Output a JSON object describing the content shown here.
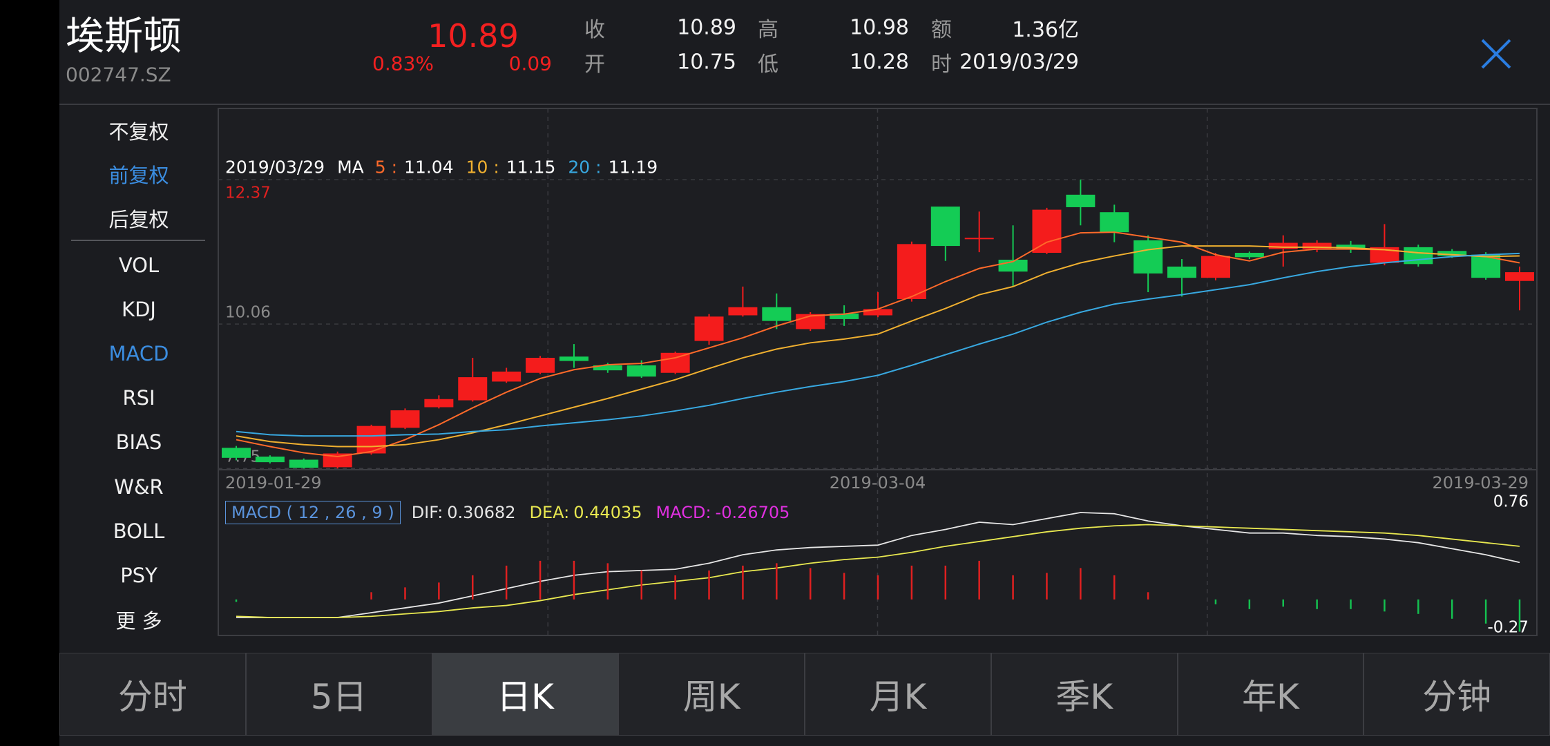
{
  "header": {
    "name": "埃斯顿",
    "code": "002747.SZ",
    "price": "10.89",
    "change_pct": "0.83%",
    "change": "0.09",
    "quote": [
      {
        "label": "收",
        "value": "10.89"
      },
      {
        "label": "开",
        "value": "10.75"
      },
      {
        "label": "高",
        "value": "10.98"
      },
      {
        "label": "低",
        "value": "10.28"
      },
      {
        "label": "额",
        "value": "1.36亿"
      },
      {
        "label": "时",
        "value": "2019/03/29"
      }
    ]
  },
  "sidebar": {
    "adjust": [
      "不复权",
      "前复权",
      "后复权"
    ],
    "adjust_active": 1,
    "indicators": [
      "VOL",
      "KDJ",
      "MACD",
      "RSI",
      "BIAS",
      "W&R",
      "BOLL",
      "PSY",
      "更 多"
    ],
    "indicator_active": 2
  },
  "tabs": {
    "items": [
      "分时",
      "5日",
      "日K",
      "周K",
      "月K",
      "季K",
      "年K",
      "分钟"
    ],
    "active": 2
  },
  "chart_data": [
    {
      "type": "candlestick",
      "legend_date": "2019/03/29",
      "ma_label": "MA",
      "x_labels": [
        "2019-01-29",
        "2019-03-04",
        "2019-03-29"
      ],
      "open": [
        8.08,
        7.94,
        7.89,
        7.77,
        7.99,
        8.4,
        8.73,
        8.84,
        9.14,
        9.28,
        9.54,
        9.4,
        9.4,
        9.28,
        9.79,
        10.2,
        10.33,
        9.98,
        10.23,
        10.2,
        10.46,
        11.94,
        11.43,
        11.09,
        11.2,
        12.13,
        11.85,
        11.4,
        10.98,
        10.8,
        11.2,
        11.26,
        11.26,
        11.33,
        11.04,
        11.29,
        11.23,
        11.17,
        10.75
      ],
      "high": [
        8.11,
        7.96,
        7.91,
        8.02,
        8.45,
        8.71,
        8.92,
        9.52,
        9.36,
        9.55,
        9.74,
        9.44,
        9.48,
        9.62,
        10.22,
        10.66,
        10.55,
        10.25,
        10.36,
        10.57,
        11.38,
        11.94,
        11.86,
        11.64,
        11.92,
        12.37,
        11.97,
        11.48,
        11.1,
        11.2,
        11.22,
        11.48,
        11.4,
        11.39,
        11.66,
        11.33,
        11.26,
        11.21,
        10.98
      ],
      "low": [
        7.88,
        7.83,
        7.75,
        7.75,
        7.97,
        8.38,
        8.71,
        8.82,
        9.12,
        9.26,
        9.36,
        9.28,
        9.2,
        9.26,
        9.73,
        10.18,
        9.98,
        9.95,
        10.03,
        10.17,
        10.42,
        11.07,
        11.21,
        10.66,
        11.18,
        11.64,
        11.37,
        10.57,
        10.5,
        10.76,
        11.1,
        10.98,
        11.21,
        11.2,
        11.0,
        10.98,
        11.12,
        10.77,
        10.28
      ],
      "close": [
        7.92,
        7.85,
        7.76,
        7.99,
        8.43,
        8.68,
        8.86,
        9.21,
        9.3,
        9.52,
        9.47,
        9.32,
        9.22,
        9.6,
        10.18,
        10.33,
        10.11,
        10.22,
        10.14,
        10.3,
        11.34,
        11.31,
        11.44,
        10.9,
        11.89,
        11.93,
        11.53,
        10.87,
        10.8,
        11.15,
        11.13,
        11.36,
        11.36,
        11.26,
        11.29,
        11.02,
        11.15,
        10.8,
        10.89
      ],
      "up_color": "#f41c1c",
      "down_color": "#14cc55",
      "ylim": [
        7.73,
        13.51
      ],
      "yticks": [
        12.37,
        10.06,
        7.75
      ],
      "grid": true,
      "series": [
        {
          "name": "5 :",
          "color": "#ff6a2a",
          "values": [
            8.21,
            8.1,
            8.0,
            7.94,
            8.02,
            8.21,
            8.45,
            8.72,
            8.97,
            9.19,
            9.33,
            9.41,
            9.43,
            9.52,
            9.68,
            9.84,
            10.03,
            10.19,
            10.22,
            10.3,
            10.5,
            10.74,
            10.95,
            11.06,
            11.37,
            11.52,
            11.53,
            11.45,
            11.37,
            11.17,
            11.07,
            11.21,
            11.26,
            11.26,
            11.25,
            11.2,
            11.17,
            11.14,
            11.04
          ]
        },
        {
          "name": "10 :",
          "color": "#f0b030",
          "values": [
            8.27,
            8.18,
            8.13,
            8.1,
            8.1,
            8.13,
            8.21,
            8.32,
            8.45,
            8.59,
            8.73,
            8.87,
            9.02,
            9.17,
            9.35,
            9.52,
            9.66,
            9.76,
            9.82,
            9.9,
            10.11,
            10.31,
            10.53,
            10.66,
            10.88,
            11.04,
            11.15,
            11.25,
            11.31,
            11.31,
            11.31,
            11.29,
            11.29,
            11.28,
            11.25,
            11.2,
            11.17,
            11.14,
            11.15
          ]
        },
        {
          "name": "20 :",
          "color": "#38a8e0",
          "values": [
            8.34,
            8.29,
            8.27,
            8.27,
            8.27,
            8.29,
            8.3,
            8.34,
            8.37,
            8.43,
            8.48,
            8.53,
            8.59,
            8.67,
            8.76,
            8.87,
            8.97,
            9.06,
            9.14,
            9.24,
            9.4,
            9.57,
            9.74,
            9.9,
            10.09,
            10.25,
            10.38,
            10.46,
            10.53,
            10.61,
            10.69,
            10.8,
            10.9,
            10.98,
            11.04,
            11.09,
            11.14,
            11.17,
            11.19
          ]
        }
      ]
    },
    {
      "type": "macd",
      "title": "MACD ( 12 , 26 , 9 )",
      "up_color": "#e02020",
      "down_color": "#14c050",
      "ylim": [
        -0.27,
        0.76
      ],
      "yticks": [
        0.76,
        -0.27
      ],
      "series": [
        {
          "name": "DIF:",
          "color": "#e6e6e6",
          "values": [
            -0.15,
            -0.15,
            -0.15,
            -0.15,
            -0.11,
            -0.07,
            -0.03,
            0.03,
            0.09,
            0.15,
            0.2,
            0.23,
            0.24,
            0.25,
            0.3,
            0.37,
            0.41,
            0.43,
            0.44,
            0.45,
            0.53,
            0.58,
            0.64,
            0.62,
            0.67,
            0.72,
            0.71,
            0.65,
            0.61,
            0.58,
            0.55,
            0.55,
            0.53,
            0.52,
            0.5,
            0.47,
            0.42,
            0.37,
            0.30682
          ]
        },
        {
          "name": "DEA:",
          "color": "#e8e850",
          "values": [
            -0.14,
            -0.15,
            -0.15,
            -0.15,
            -0.14,
            -0.12,
            -0.1,
            -0.07,
            -0.05,
            -0.01,
            0.04,
            0.08,
            0.12,
            0.15,
            0.18,
            0.23,
            0.26,
            0.3,
            0.33,
            0.35,
            0.39,
            0.44,
            0.48,
            0.52,
            0.56,
            0.59,
            0.61,
            0.62,
            0.61,
            0.6,
            0.59,
            0.58,
            0.57,
            0.56,
            0.55,
            0.53,
            0.5,
            0.47,
            0.44035
          ]
        },
        {
          "name": "MACD:",
          "color": "#e030e0",
          "values": [
            -0.02,
            0,
            0,
            0,
            0.06,
            0.1,
            0.14,
            0.2,
            0.28,
            0.32,
            0.32,
            0.3,
            0.24,
            0.2,
            0.24,
            0.28,
            0.3,
            0.26,
            0.22,
            0.2,
            0.28,
            0.28,
            0.32,
            0.2,
            0.22,
            0.26,
            0.2,
            0.06,
            0,
            -0.04,
            -0.08,
            -0.06,
            -0.08,
            -0.08,
            -0.1,
            -0.12,
            -0.16,
            -0.2,
            -0.26705
          ]
        }
      ]
    }
  ]
}
